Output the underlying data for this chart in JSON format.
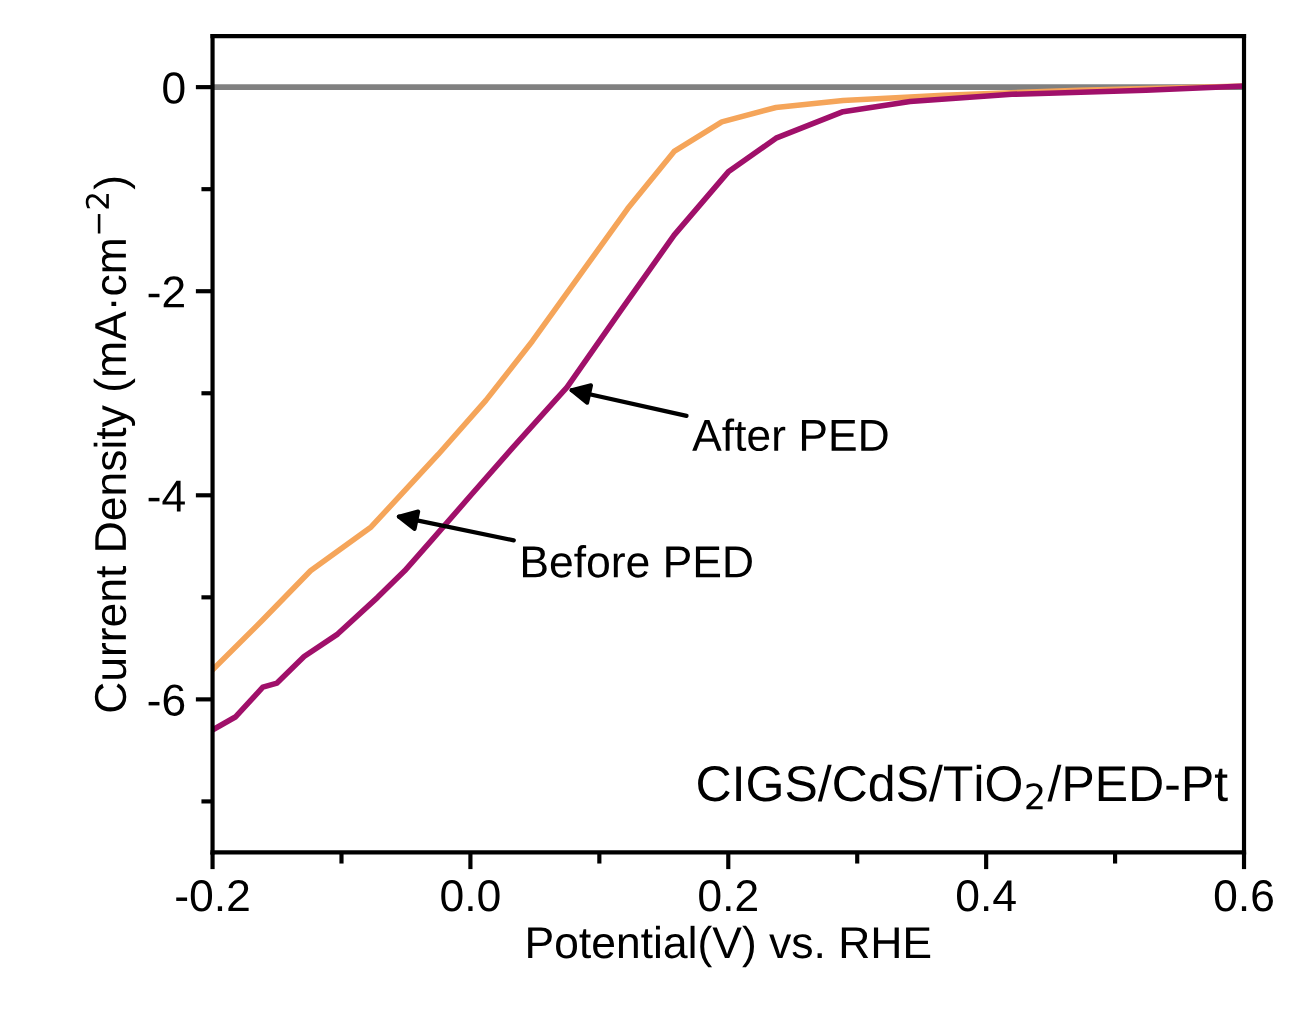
{
  "chart_data": {
    "type": "line",
    "xlabel": "Potential(V) vs. RHE",
    "ylabel": "Current Density (mA·cm$^{−2}$)",
    "xlim": [
      -0.2,
      0.6
    ],
    "xticks": [
      -0.2,
      {
        "value": 0,
        "label": "0.0"
      },
      0.2,
      0.4,
      0.6
    ],
    "ylim": [
      -7.5,
      0.5
    ],
    "yticks": [
      -6,
      -4,
      -2,
      0
    ],
    "grid": false,
    "legend": false,
    "marker": "none",
    "line_style": "solid",
    "series": [
      {
        "color": "#f5a55a",
        "x": [
          -0.2,
          -0.161,
          -0.124,
          -0.077,
          -0.025,
          0.012,
          0.048,
          0.085,
          0.122,
          0.158,
          0.195,
          0.237,
          0.289,
          0.367,
          0.472,
          0.6
        ],
        "values": [
          -5.71,
          -5.22,
          -4.74,
          -4.31,
          -3.6,
          -3.07,
          -2.49,
          -1.84,
          -1.19,
          -0.63,
          -0.34,
          -0.2,
          -0.13,
          -0.08,
          -0.03,
          0.01
        ]
      },
      {
        "color": "#a0106a",
        "x": [
          -0.2,
          -0.182,
          -0.161,
          -0.15,
          -0.129,
          -0.103,
          -0.072,
          -0.051,
          -0.03,
          0.001,
          0.033,
          0.075,
          0.116,
          0.158,
          0.2,
          0.237,
          0.289,
          0.341,
          0.42,
          0.524,
          0.6
        ],
        "values": [
          -6.3,
          -6.17,
          -5.88,
          -5.84,
          -5.58,
          -5.36,
          -5.0,
          -4.74,
          -4.44,
          -3.99,
          -3.53,
          -2.94,
          -2.2,
          -1.45,
          -0.83,
          -0.5,
          -0.24,
          -0.14,
          -0.07,
          -0.03,
          0.01
        ]
      }
    ],
    "ref_lines": [
      {
        "axis": "y",
        "value": 0,
        "color": "#808080"
      }
    ],
    "annotations": [
      {
        "text": "After PED",
        "x": 0.075,
        "y": -2.96
      },
      {
        "text": "Before PED",
        "x": -0.059,
        "y": -4.2
      },
      "CIGS/CdS/TiO$_{2}$/PED-Pt"
    ]
  }
}
